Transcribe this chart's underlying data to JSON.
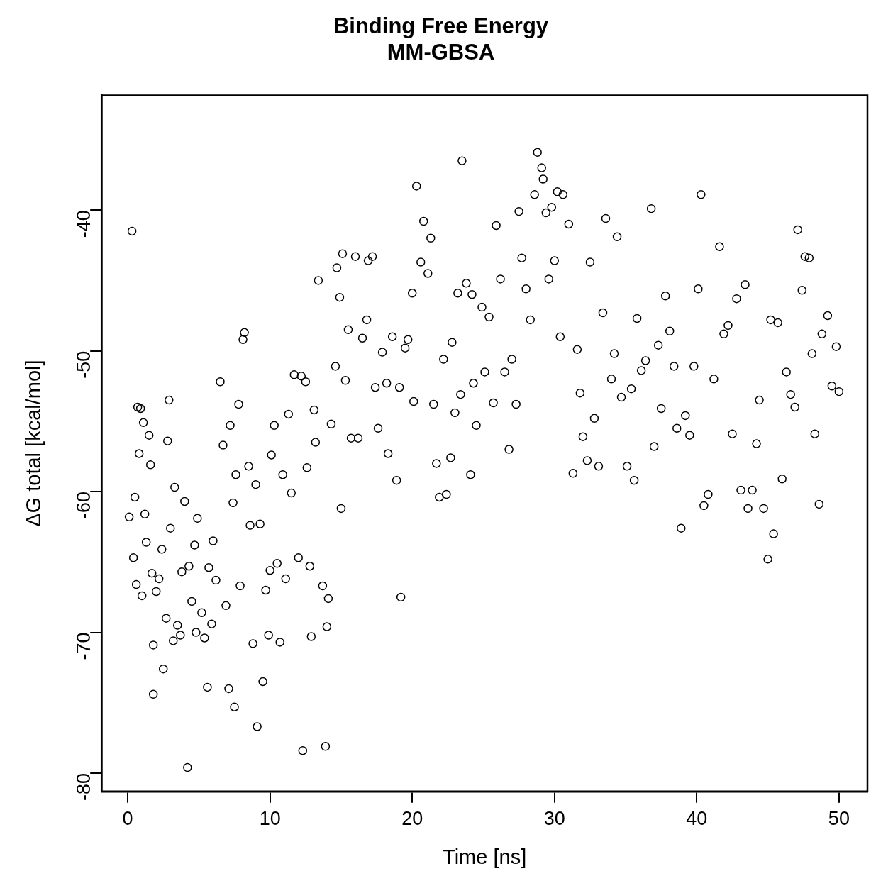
{
  "chart_data": {
    "type": "scatter",
    "title": "Binding Free Energy\nMM-GBSA",
    "xlabel": "Time [ns]",
    "ylabel": "ΔG total [kcal/mol]",
    "xlim": [
      -1.84,
      52.0
    ],
    "ylim": [
      -81.3,
      -31.85
    ],
    "xticks": [
      0,
      10,
      20,
      30,
      40,
      50
    ],
    "yticks": [
      -80,
      -70,
      -60,
      -50,
      -40
    ],
    "grid": false,
    "legend": false,
    "marker": "circle",
    "series": [
      {
        "color": "#000000",
        "x": [
          0.1,
          0.3,
          0.4,
          0.5,
          0.6,
          0.7,
          0.8,
          0.9,
          1.0,
          1.1,
          1.2,
          1.3,
          1.5,
          1.6,
          1.7,
          1.8,
          1.8,
          2.0,
          2.2,
          2.4,
          2.5,
          2.7,
          2.9,
          2.8,
          3.0,
          3.2,
          3.3,
          3.5,
          3.7,
          3.8,
          4.0,
          4.2,
          4.3,
          4.5,
          4.7,
          4.8,
          4.9,
          5.2,
          5.4,
          5.6,
          5.7,
          5.9,
          6.0,
          6.2,
          6.5,
          6.7,
          6.9,
          7.1,
          7.2,
          7.4,
          7.5,
          7.6,
          7.8,
          7.9,
          8.1,
          8.2,
          8.5,
          8.6,
          8.8,
          9.0,
          9.1,
          9.3,
          9.5,
          9.7,
          9.9,
          10.0,
          10.1,
          10.3,
          10.5,
          10.7,
          10.9,
          11.1,
          11.3,
          11.5,
          11.7,
          12.0,
          12.2,
          12.3,
          12.5,
          12.6,
          12.8,
          12.9,
          13.1,
          13.2,
          13.4,
          13.7,
          13.9,
          14.0,
          14.1,
          14.3,
          14.6,
          14.7,
          14.9,
          15.0,
          15.1,
          15.3,
          15.5,
          15.7,
          16.0,
          16.2,
          16.5,
          16.8,
          16.9,
          17.2,
          17.4,
          17.6,
          17.9,
          18.2,
          18.3,
          18.6,
          18.9,
          19.1,
          19.2,
          19.5,
          19.7,
          20.0,
          20.1,
          20.3,
          20.6,
          20.8,
          21.1,
          21.3,
          21.5,
          21.7,
          21.9,
          22.2,
          22.4,
          22.7,
          22.8,
          23.0,
          23.2,
          23.4,
          23.5,
          23.8,
          24.1,
          24.2,
          24.3,
          24.5,
          24.9,
          25.1,
          25.4,
          25.7,
          25.9,
          26.2,
          26.5,
          26.8,
          27.0,
          27.3,
          27.5,
          27.7,
          28.0,
          28.3,
          28.6,
          28.8,
          29.1,
          29.2,
          29.4,
          29.6,
          29.8,
          30.0,
          30.2,
          30.4,
          30.6,
          31.0,
          31.3,
          31.6,
          31.8,
          32.0,
          32.3,
          32.5,
          32.8,
          33.1,
          33.4,
          33.6,
          34.0,
          34.2,
          34.4,
          34.7,
          35.1,
          35.4,
          35.6,
          35.8,
          36.1,
          36.4,
          36.8,
          37.0,
          37.3,
          37.5,
          37.8,
          38.1,
          38.4,
          38.6,
          38.9,
          39.2,
          39.5,
          39.8,
          40.1,
          40.3,
          40.5,
          40.8,
          41.2,
          41.6,
          41.9,
          42.2,
          42.5,
          42.8,
          43.1,
          43.4,
          43.6,
          43.9,
          44.2,
          44.4,
          44.7,
          45.0,
          45.2,
          45.4,
          45.7,
          46.0,
          46.3,
          46.6,
          46.9,
          47.1,
          47.4,
          47.6,
          47.9,
          48.1,
          48.3,
          48.6,
          48.8,
          49.2,
          49.5,
          49.8,
          50.0
        ],
        "values": [
          -61.8,
          -41.5,
          -64.7,
          -60.4,
          -66.6,
          -54.0,
          -57.3,
          -54.1,
          -67.4,
          -55.1,
          -61.6,
          -63.6,
          -56.0,
          -58.1,
          -65.8,
          -74.4,
          -70.9,
          -67.1,
          -66.2,
          -64.1,
          -72.6,
          -69.0,
          -53.5,
          -56.4,
          -62.6,
          -70.6,
          -59.7,
          -69.5,
          -70.2,
          -65.7,
          -60.7,
          -79.6,
          -65.3,
          -67.8,
          -63.8,
          -70.0,
          -61.9,
          -68.6,
          -70.4,
          -73.9,
          -65.4,
          -69.4,
          -63.5,
          -66.3,
          -52.2,
          -56.7,
          -68.1,
          -74.0,
          -55.3,
          -60.8,
          -75.3,
          -58.8,
          -53.8,
          -66.7,
          -49.2,
          -48.7,
          -58.2,
          -62.4,
          -70.8,
          -59.5,
          -76.7,
          -62.3,
          -73.5,
          -67.0,
          -70.2,
          -65.6,
          -57.4,
          -55.3,
          -65.1,
          -70.7,
          -58.8,
          -66.2,
          -54.5,
          -60.1,
          -51.7,
          -64.7,
          -51.8,
          -78.4,
          -52.2,
          -58.3,
          -65.3,
          -70.3,
          -54.2,
          -56.5,
          -45.0,
          -66.7,
          -78.1,
          -69.6,
          -67.6,
          -55.2,
          -51.1,
          -44.1,
          -46.2,
          -61.2,
          -43.1,
          -52.1,
          -48.5,
          -56.2,
          -43.3,
          -56.2,
          -49.1,
          -47.8,
          -43.6,
          -43.3,
          -52.6,
          -55.5,
          -50.1,
          -52.3,
          -57.3,
          -49.0,
          -59.2,
          -52.6,
          -67.5,
          -49.8,
          -49.2,
          -45.9,
          -53.6,
          -38.3,
          -43.7,
          -40.8,
          -44.5,
          -42.0,
          -53.8,
          -58.0,
          -60.4,
          -50.6,
          -60.2,
          -57.6,
          -49.4,
          -54.4,
          -45.9,
          -53.1,
          -36.5,
          -45.2,
          -58.8,
          -46.0,
          -52.3,
          -55.3,
          -46.9,
          -51.5,
          -47.6,
          -53.7,
          -41.1,
          -44.9,
          -51.5,
          -57.0,
          -50.6,
          -53.8,
          -40.1,
          -43.4,
          -45.6,
          -47.8,
          -38.9,
          -35.9,
          -37.0,
          -37.8,
          -40.2,
          -44.9,
          -39.8,
          -43.6,
          -38.7,
          -49.0,
          -38.9,
          -41.0,
          -58.7,
          -49.9,
          -53.0,
          -56.1,
          -57.8,
          -43.7,
          -54.8,
          -58.2,
          -47.3,
          -40.6,
          -52.0,
          -50.2,
          -41.9,
          -53.3,
          -58.2,
          -52.7,
          -59.2,
          -47.7,
          -51.4,
          -50.7,
          -39.9,
          -56.8,
          -49.6,
          -54.1,
          -46.1,
          -48.6,
          -51.1,
          -55.5,
          -62.6,
          -54.6,
          -56.0,
          -51.1,
          -45.6,
          -38.9,
          -61.0,
          -60.2,
          -52.0,
          -42.6,
          -48.8,
          -48.2,
          -55.9,
          -46.3,
          -59.9,
          -45.3,
          -61.2,
          -59.9,
          -56.6,
          -53.5,
          -61.2,
          -64.8,
          -47.8,
          -63.0,
          -48.0,
          -59.1,
          -51.5,
          -53.1,
          -54.0,
          -41.4,
          -45.7,
          -43.3,
          -43.4,
          -50.2,
          -55.9,
          -60.9,
          -48.8,
          -47.5,
          -52.5,
          -49.7,
          -52.9
        ]
      }
    ]
  }
}
